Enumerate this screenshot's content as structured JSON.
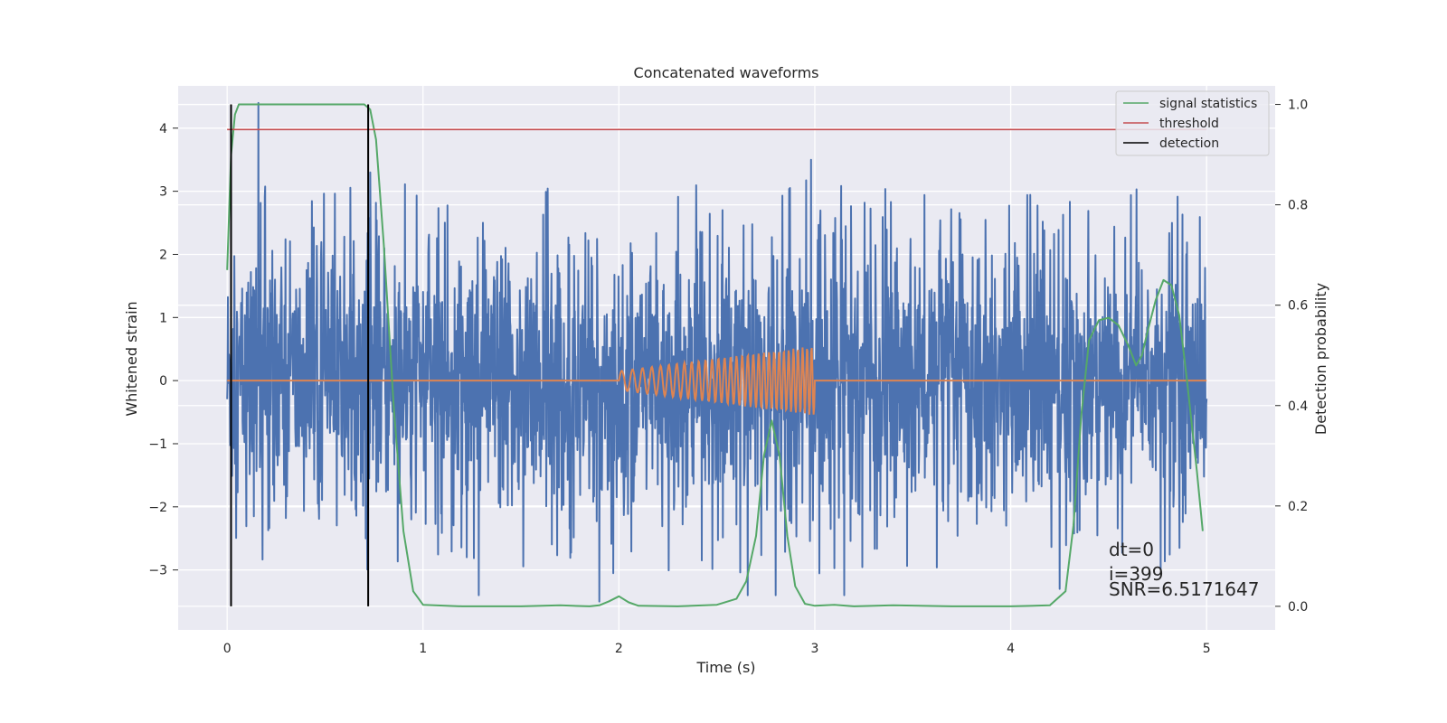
{
  "chart_data": {
    "type": "line",
    "title": "Concatenated waveforms",
    "xlabel": "Time (s)",
    "ylabel": "Whitened strain",
    "y2label": "Detection probability",
    "xlim": [
      -0.25,
      5.35
    ],
    "ylim": [
      -3.95,
      4.67
    ],
    "y2lim": [
      -0.047,
      1.037
    ],
    "x_ticks": [
      0,
      1,
      2,
      3,
      4,
      5
    ],
    "y_ticks": [
      -3,
      -2,
      -1,
      0,
      1,
      2,
      3,
      4
    ],
    "y2_ticks": [
      0.0,
      0.2,
      0.4,
      0.6,
      0.8,
      1.0
    ],
    "grid": true,
    "legend_position": "top-right",
    "colors": {
      "noise": "#4c72b0",
      "injection": "#dd8452",
      "signal_statistics": "#55a868",
      "threshold": "#c44e52",
      "detection": "#000000",
      "background": "#eaeaf2"
    },
    "series": [
      {
        "name": "",
        "axis": "left",
        "description": "whitened strain noise, spans x=0 to 5, envelope about -3.5 to 4.4",
        "x_range": [
          0,
          5
        ],
        "peaks": [
          [
            0.16,
            4.4
          ],
          [
            2.98,
            3.5
          ],
          [
            0.73,
            3.3
          ],
          [
            1.9,
            -3.5
          ],
          [
            4.25,
            -3.3
          ],
          [
            2.8,
            -3.4
          ],
          [
            3.15,
            -3.4
          ]
        ]
      },
      {
        "name": "",
        "axis": "left",
        "description": "injected chirp, zero outside 2 to 3 s, amplitude growing from 0.15 to 0.55",
        "x_range": [
          0,
          5
        ],
        "chirp_start": 2.0,
        "chirp_end": 3.0,
        "amp_start": 0.15,
        "amp_end": 0.55
      },
      {
        "name": "signal statistics",
        "axis": "right",
        "x": [
          0.0,
          0.02,
          0.04,
          0.06,
          0.1,
          0.3,
          0.5,
          0.65,
          0.7,
          0.73,
          0.76,
          0.8,
          0.85,
          0.9,
          0.95,
          1.0,
          1.2,
          1.5,
          1.7,
          1.85,
          1.9,
          1.95,
          2.0,
          2.05,
          2.1,
          2.3,
          2.5,
          2.6,
          2.65,
          2.7,
          2.74,
          2.78,
          2.82,
          2.86,
          2.9,
          2.95,
          3.0,
          3.1,
          3.2,
          3.4,
          3.7,
          4.0,
          4.2,
          4.28,
          4.32,
          4.36,
          4.4,
          4.45,
          4.5,
          4.55,
          4.6,
          4.64,
          4.67,
          4.7,
          4.74,
          4.78,
          4.82,
          4.86,
          4.9,
          4.95,
          4.98
        ],
        "values": [
          0.67,
          0.9,
          0.98,
          1.0,
          1.0,
          1.0,
          1.0,
          1.0,
          1.0,
          0.99,
          0.93,
          0.72,
          0.4,
          0.15,
          0.03,
          0.003,
          0.0,
          0.0,
          0.002,
          0.0,
          0.002,
          0.01,
          0.02,
          0.008,
          0.001,
          0.0,
          0.003,
          0.015,
          0.05,
          0.14,
          0.3,
          0.37,
          0.3,
          0.14,
          0.04,
          0.005,
          0.001,
          0.003,
          0.0,
          0.002,
          0.0,
          0.0,
          0.002,
          0.03,
          0.16,
          0.38,
          0.53,
          0.57,
          0.575,
          0.56,
          0.52,
          0.48,
          0.5,
          0.55,
          0.61,
          0.65,
          0.64,
          0.58,
          0.45,
          0.27,
          0.15
        ]
      },
      {
        "name": "threshold",
        "axis": "right",
        "x": [
          0,
          5
        ],
        "values": [
          0.95,
          0.95
        ]
      },
      {
        "name": "detection",
        "axis": "right",
        "type": "vlines",
        "x": [
          0.02,
          0.72
        ],
        "range": [
          0,
          1.0
        ]
      }
    ],
    "annotations": [
      "dt=0",
      "i=399",
      "SNR=6.5171647"
    ]
  }
}
